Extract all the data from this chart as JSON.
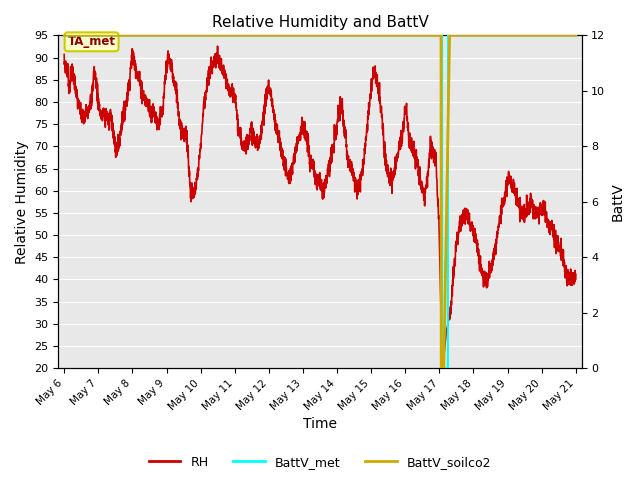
{
  "title": "Relative Humidity and BattV",
  "xlabel": "Time",
  "ylabel_left": "Relative Humidity",
  "ylabel_right": "BattV",
  "ylim_left": [
    20,
    95
  ],
  "ylim_right": [
    0,
    12
  ],
  "yticks_left": [
    20,
    25,
    30,
    35,
    40,
    45,
    50,
    55,
    60,
    65,
    70,
    75,
    80,
    85,
    90,
    95
  ],
  "yticks_right": [
    0,
    2,
    4,
    6,
    8,
    10,
    12
  ],
  "bg_color": "#e0e0e0",
  "plot_bg_color": "#e8e8e8",
  "annotation_text": "TA_met",
  "annotation_facecolor": "#ffffcc",
  "annotation_edgecolor": "#cccc00",
  "rh_color": "#cc0000",
  "battv_met_color": "cyan",
  "battv_soilco2_color": "#ccaa00",
  "legend_rh": "RH",
  "legend_battv_met": "BattV_met",
  "legend_battv_soilco2": "BattV_soilco2",
  "x_start": 5.83,
  "x_end": 21.17,
  "xtick_positions": [
    6,
    7,
    8,
    9,
    10,
    11,
    12,
    13,
    14,
    15,
    16,
    17,
    18,
    19,
    20,
    21
  ],
  "xtick_labels": [
    "May 6",
    "May 7",
    "May 8",
    "May 9",
    "May 10",
    "May 11",
    "May 12",
    "May 13",
    "May 14",
    "May 15",
    "May 16",
    "May 17",
    "May 18",
    "May 19",
    "May 20",
    "May 21"
  ],
  "rh_keypoints": [
    [
      6.0,
      89
    ],
    [
      6.1,
      87
    ],
    [
      6.15,
      83
    ],
    [
      6.2,
      87
    ],
    [
      6.3,
      85
    ],
    [
      6.35,
      82
    ],
    [
      6.4,
      80
    ],
    [
      6.5,
      77
    ],
    [
      6.6,
      76
    ],
    [
      6.65,
      79
    ],
    [
      6.7,
      78
    ],
    [
      6.75,
      80
    ],
    [
      6.8,
      80
    ],
    [
      6.85,
      85
    ],
    [
      6.88,
      87
    ],
    [
      6.9,
      86
    ],
    [
      6.95,
      84
    ],
    [
      7.0,
      80
    ],
    [
      7.05,
      78
    ],
    [
      7.1,
      76
    ],
    [
      7.15,
      78
    ],
    [
      7.2,
      76
    ],
    [
      7.25,
      78
    ],
    [
      7.3,
      75
    ],
    [
      7.35,
      77
    ],
    [
      7.4,
      76
    ],
    [
      7.5,
      69
    ],
    [
      7.6,
      70
    ],
    [
      7.7,
      76
    ],
    [
      7.8,
      79
    ],
    [
      7.9,
      84
    ],
    [
      7.95,
      88
    ],
    [
      8.0,
      91
    ],
    [
      8.05,
      89
    ],
    [
      8.1,
      88
    ],
    [
      8.15,
      86
    ],
    [
      8.2,
      85
    ],
    [
      8.3,
      82
    ],
    [
      8.4,
      80
    ],
    [
      8.5,
      79
    ],
    [
      8.55,
      77
    ],
    [
      8.6,
      78
    ],
    [
      8.65,
      77
    ],
    [
      8.7,
      76
    ],
    [
      8.75,
      75
    ],
    [
      8.8,
      76
    ],
    [
      8.9,
      78
    ],
    [
      8.95,
      84
    ],
    [
      9.0,
      88
    ],
    [
      9.05,
      90
    ],
    [
      9.1,
      89
    ],
    [
      9.15,
      88
    ],
    [
      9.2,
      85
    ],
    [
      9.3,
      82
    ],
    [
      9.35,
      78
    ],
    [
      9.4,
      75
    ],
    [
      9.5,
      73
    ],
    [
      9.6,
      72
    ],
    [
      9.7,
      60
    ],
    [
      9.8,
      59
    ],
    [
      9.9,
      63
    ],
    [
      10.0,
      70
    ],
    [
      10.1,
      80
    ],
    [
      10.2,
      84
    ],
    [
      10.3,
      88
    ],
    [
      10.4,
      89
    ],
    [
      10.5,
      90
    ],
    [
      10.6,
      88
    ],
    [
      10.7,
      86
    ],
    [
      10.8,
      83
    ],
    [
      10.9,
      82
    ],
    [
      11.0,
      81
    ],
    [
      11.05,
      79
    ],
    [
      11.1,
      74
    ],
    [
      11.2,
      71
    ],
    [
      11.3,
      70
    ],
    [
      11.4,
      72
    ],
    [
      11.5,
      74
    ],
    [
      11.6,
      71
    ],
    [
      11.7,
      70
    ],
    [
      11.75,
      72
    ],
    [
      11.8,
      75
    ],
    [
      11.9,
      80
    ],
    [
      11.95,
      83
    ],
    [
      12.0,
      83
    ],
    [
      12.05,
      82
    ],
    [
      12.1,
      80
    ],
    [
      12.2,
      74
    ],
    [
      12.3,
      72
    ],
    [
      12.4,
      68
    ],
    [
      12.5,
      65
    ],
    [
      12.55,
      63
    ],
    [
      12.6,
      63
    ],
    [
      12.7,
      65
    ],
    [
      12.8,
      70
    ],
    [
      12.9,
      73
    ],
    [
      13.0,
      75
    ],
    [
      13.05,
      73
    ],
    [
      13.1,
      72
    ],
    [
      13.15,
      70
    ],
    [
      13.2,
      67
    ],
    [
      13.3,
      65
    ],
    [
      13.4,
      62
    ],
    [
      13.5,
      62
    ],
    [
      13.6,
      60
    ],
    [
      13.7,
      63
    ],
    [
      13.8,
      67
    ],
    [
      13.9,
      70
    ],
    [
      14.0,
      75
    ],
    [
      14.05,
      77
    ],
    [
      14.1,
      79
    ],
    [
      14.15,
      79
    ],
    [
      14.2,
      74
    ],
    [
      14.25,
      73
    ],
    [
      14.3,
      68
    ],
    [
      14.4,
      65
    ],
    [
      14.5,
      63
    ],
    [
      14.6,
      60
    ],
    [
      14.7,
      63
    ],
    [
      14.8,
      68
    ],
    [
      14.9,
      76
    ],
    [
      15.0,
      83
    ],
    [
      15.05,
      86
    ],
    [
      15.1,
      87
    ],
    [
      15.15,
      86
    ],
    [
      15.2,
      83
    ],
    [
      15.3,
      78
    ],
    [
      15.4,
      68
    ],
    [
      15.5,
      64
    ],
    [
      15.6,
      62
    ],
    [
      15.7,
      65
    ],
    [
      15.8,
      69
    ],
    [
      15.9,
      72
    ],
    [
      16.0,
      78
    ],
    [
      16.05,
      78
    ],
    [
      16.1,
      72
    ],
    [
      16.2,
      70
    ],
    [
      16.3,
      68
    ],
    [
      16.35,
      66
    ],
    [
      16.4,
      64
    ],
    [
      16.5,
      60
    ],
    [
      16.55,
      58
    ],
    [
      16.6,
      60
    ],
    [
      16.65,
      63
    ],
    [
      16.7,
      67
    ],
    [
      16.75,
      70
    ],
    [
      16.8,
      69
    ],
    [
      16.9,
      67
    ],
    [
      17.0,
      50
    ],
    [
      17.05,
      30
    ],
    [
      17.1,
      22
    ],
    [
      17.15,
      24
    ],
    [
      17.2,
      28
    ],
    [
      17.3,
      32
    ],
    [
      17.35,
      35
    ],
    [
      17.4,
      40
    ],
    [
      17.5,
      48
    ],
    [
      17.6,
      52
    ],
    [
      17.7,
      54
    ],
    [
      17.8,
      55
    ],
    [
      17.9,
      52
    ],
    [
      18.0,
      51
    ],
    [
      18.1,
      48
    ],
    [
      18.15,
      45
    ],
    [
      18.2,
      43
    ],
    [
      18.3,
      40
    ],
    [
      18.4,
      40
    ],
    [
      18.5,
      42
    ],
    [
      18.6,
      45
    ],
    [
      18.7,
      50
    ],
    [
      18.75,
      52
    ],
    [
      18.8,
      55
    ],
    [
      18.9,
      58
    ],
    [
      19.0,
      62
    ],
    [
      19.05,
      63
    ],
    [
      19.1,
      62
    ],
    [
      19.2,
      60
    ],
    [
      19.3,
      58
    ],
    [
      19.4,
      55
    ],
    [
      19.5,
      55
    ],
    [
      19.6,
      56
    ],
    [
      19.65,
      57
    ],
    [
      19.7,
      58
    ],
    [
      19.75,
      56
    ],
    [
      19.8,
      55
    ],
    [
      19.9,
      55
    ],
    [
      20.0,
      56
    ],
    [
      20.05,
      57
    ],
    [
      20.1,
      55
    ],
    [
      20.2,
      52
    ],
    [
      20.3,
      52
    ],
    [
      20.4,
      49
    ],
    [
      20.5,
      48
    ],
    [
      20.6,
      46
    ],
    [
      20.7,
      42
    ],
    [
      20.8,
      40
    ],
    [
      20.9,
      40
    ],
    [
      21.0,
      41
    ]
  ],
  "battv_soilco2_drop_x": 17.1,
  "battv_met_dip_start": 17.08,
  "battv_met_dip_end": 17.25
}
